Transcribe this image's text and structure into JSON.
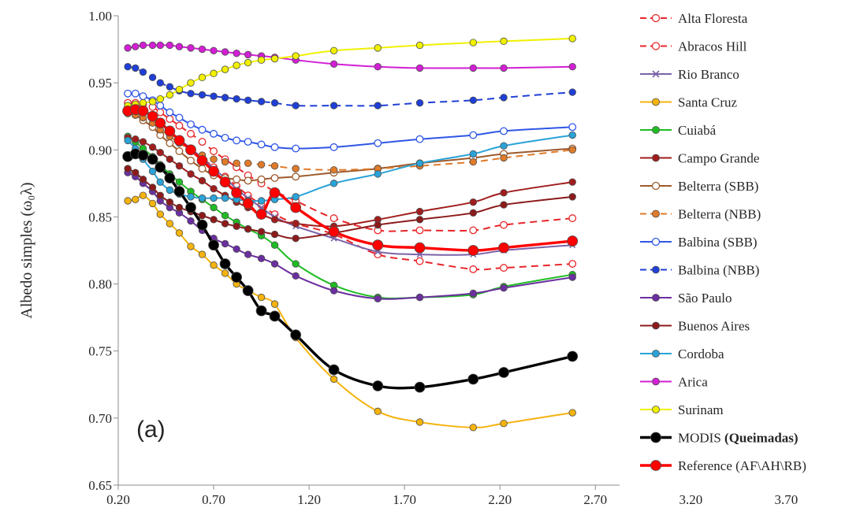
{
  "chart_data": {
    "type": "line",
    "ylabel": "Albedo simples (ω₀λ)",
    "panel_label": "(a)",
    "xlim": [
      0.2,
      4.0
    ],
    "ylim": [
      0.65,
      1.0
    ],
    "x_ticks": [
      "0.20",
      "0.70",
      "1.20",
      "1.70",
      "2.20",
      "2.70",
      "3.20",
      "3.70"
    ],
    "y_ticks": [
      "0.65",
      "0.70",
      "0.75",
      "0.80",
      "0.85",
      "0.90",
      "0.95",
      "1.00"
    ],
    "grid": false,
    "legend_position": "right",
    "x": [
      0.25,
      0.29,
      0.33,
      0.38,
      0.42,
      0.47,
      0.52,
      0.58,
      0.64,
      0.7,
      0.76,
      0.82,
      0.88,
      0.95,
      1.02,
      1.13,
      1.33,
      1.56,
      1.78,
      2.06,
      2.22,
      2.58
    ],
    "series": [
      {
        "name": "Alta Floresta",
        "color": "#e8262a",
        "dash": true,
        "marker": "open",
        "values": [
          0.935,
          0.935,
          0.934,
          0.932,
          0.928,
          0.923,
          0.918,
          0.912,
          0.906,
          0.899,
          0.893,
          0.887,
          0.881,
          0.875,
          0.869,
          0.862,
          0.849,
          0.84,
          0.84,
          0.84,
          0.844,
          0.849
        ]
      },
      {
        "name": "Abracos Hill",
        "color": "#e8262a",
        "dash": true,
        "marker": "open",
        "values": [
          0.932,
          0.931,
          0.929,
          0.925,
          0.92,
          0.914,
          0.908,
          0.901,
          0.894,
          0.887,
          0.88,
          0.873,
          0.866,
          0.859,
          0.852,
          0.845,
          0.837,
          0.822,
          0.817,
          0.811,
          0.812,
          0.815
        ]
      },
      {
        "name": "Rio Branco",
        "color": "#7b62a8",
        "marker": "x",
        "values": [
          0.931,
          0.931,
          0.929,
          0.925,
          0.92,
          0.914,
          0.908,
          0.901,
          0.894,
          0.886,
          0.879,
          0.871,
          0.864,
          0.857,
          0.85,
          0.843,
          0.834,
          0.824,
          0.822,
          0.822,
          0.825,
          0.829
        ]
      },
      {
        "name": "Santa Cruz",
        "color": "#f5b30f",
        "marker": "filled",
        "values": [
          0.862,
          0.863,
          0.866,
          0.86,
          0.852,
          0.845,
          0.838,
          0.828,
          0.822,
          0.814,
          0.808,
          0.8,
          0.795,
          0.79,
          0.785,
          0.76,
          0.729,
          0.705,
          0.697,
          0.693,
          0.696,
          0.704
        ]
      },
      {
        "name": "Cuiabá",
        "color": "#1fbd24",
        "marker": "filled",
        "values": [
          0.91,
          0.906,
          0.901,
          0.895,
          0.889,
          0.882,
          0.876,
          0.869,
          0.863,
          0.857,
          0.851,
          0.846,
          0.841,
          0.836,
          0.829,
          0.815,
          0.799,
          0.79,
          0.79,
          0.792,
          0.798,
          0.807
        ]
      },
      {
        "name": "Campo Grande",
        "color": "#a11d1d",
        "marker": "filled",
        "values": [
          0.909,
          0.908,
          0.906,
          0.902,
          0.898,
          0.893,
          0.888,
          0.882,
          0.877,
          0.871,
          0.866,
          0.861,
          0.857,
          0.852,
          0.848,
          0.845,
          0.843,
          0.848,
          0.854,
          0.861,
          0.868,
          0.876
        ]
      },
      {
        "name": "Belterra (SBB)",
        "color": "#9c5a2c",
        "marker": "open",
        "values": [
          0.928,
          0.926,
          0.922,
          0.917,
          0.911,
          0.905,
          0.899,
          0.892,
          0.886,
          0.881,
          0.879,
          0.878,
          0.877,
          0.878,
          0.879,
          0.88,
          0.883,
          0.886,
          0.89,
          0.894,
          0.897,
          0.901
        ]
      },
      {
        "name": "Belterra (NBB)",
        "color": "#e07b2a",
        "dash": true,
        "marker": "filled",
        "values": [
          0.927,
          0.926,
          0.924,
          0.92,
          0.915,
          0.91,
          0.905,
          0.9,
          0.896,
          0.893,
          0.891,
          0.89,
          0.89,
          0.889,
          0.888,
          0.886,
          0.885,
          0.886,
          0.888,
          0.891,
          0.894,
          0.9
        ]
      },
      {
        "name": "Balbina (SBB)",
        "color": "#2f56e6",
        "marker": "open",
        "values": [
          0.942,
          0.942,
          0.94,
          0.937,
          0.933,
          0.928,
          0.924,
          0.919,
          0.915,
          0.912,
          0.909,
          0.907,
          0.906,
          0.904,
          0.902,
          0.901,
          0.902,
          0.905,
          0.908,
          0.911,
          0.914,
          0.917
        ]
      },
      {
        "name": "Balbina (NBB)",
        "color": "#1f3fd6",
        "dash": true,
        "marker": "filled",
        "values": [
          0.962,
          0.961,
          0.958,
          0.954,
          0.95,
          0.947,
          0.944,
          0.942,
          0.941,
          0.94,
          0.939,
          0.938,
          0.937,
          0.936,
          0.935,
          0.933,
          0.933,
          0.933,
          0.935,
          0.937,
          0.939,
          0.943
        ]
      },
      {
        "name": "São Paulo",
        "color": "#6b2fa0",
        "marker": "filled",
        "values": [
          0.883,
          0.88,
          0.875,
          0.869,
          0.862,
          0.857,
          0.853,
          0.847,
          0.84,
          0.834,
          0.83,
          0.826,
          0.822,
          0.819,
          0.815,
          0.806,
          0.795,
          0.789,
          0.79,
          0.793,
          0.797,
          0.805
        ]
      },
      {
        "name": "Buenos Aires",
        "color": "#8c1a1a",
        "marker": "filled",
        "values": [
          0.886,
          0.883,
          0.878,
          0.872,
          0.866,
          0.861,
          0.857,
          0.854,
          0.851,
          0.848,
          0.845,
          0.843,
          0.841,
          0.839,
          0.837,
          0.834,
          0.838,
          0.844,
          0.848,
          0.853,
          0.859,
          0.865
        ]
      },
      {
        "name": "Cordoba",
        "color": "#2aa3d8",
        "marker": "filled",
        "values": [
          0.907,
          0.901,
          0.893,
          0.884,
          0.876,
          0.87,
          0.867,
          0.865,
          0.864,
          0.864,
          0.864,
          0.863,
          0.862,
          0.862,
          0.863,
          0.865,
          0.875,
          0.882,
          0.89,
          0.897,
          0.903,
          0.911
        ]
      },
      {
        "name": "Arica",
        "color": "#d21fd4",
        "marker": "filled",
        "values": [
          0.976,
          0.977,
          0.978,
          0.978,
          0.978,
          0.978,
          0.977,
          0.976,
          0.975,
          0.974,
          0.973,
          0.972,
          0.971,
          0.97,
          0.969,
          0.967,
          0.964,
          0.962,
          0.961,
          0.961,
          0.961,
          0.962
        ]
      },
      {
        "name": "Surinam",
        "color": "#f0f000",
        "marker": "filled",
        "values": [
          0.933,
          0.934,
          0.935,
          0.936,
          0.938,
          0.941,
          0.945,
          0.95,
          0.954,
          0.957,
          0.96,
          0.963,
          0.965,
          0.967,
          0.968,
          0.97,
          0.974,
          0.976,
          0.978,
          0.98,
          0.981,
          0.983
        ]
      },
      {
        "name": "MODIS (Queimadas)",
        "name_plain": "MODIS ",
        "name_bold": "(Queimadas)",
        "color": "#000000",
        "marker": "filled",
        "bold": true,
        "values": [
          0.895,
          0.897,
          0.896,
          0.893,
          0.887,
          0.879,
          0.869,
          0.857,
          0.844,
          0.829,
          0.815,
          0.805,
          0.795,
          0.78,
          0.776,
          0.762,
          0.736,
          0.724,
          0.723,
          0.729,
          0.734,
          0.746
        ]
      },
      {
        "name": "Reference (AF\\AH\\RB)",
        "color": "#ff0000",
        "marker": "filled",
        "bold": true,
        "values": [
          0.929,
          0.93,
          0.929,
          0.925,
          0.92,
          0.914,
          0.907,
          0.9,
          0.892,
          0.884,
          0.876,
          0.868,
          0.86,
          0.852,
          0.868,
          0.857,
          0.839,
          0.829,
          0.827,
          0.825,
          0.827,
          0.832
        ]
      }
    ]
  }
}
